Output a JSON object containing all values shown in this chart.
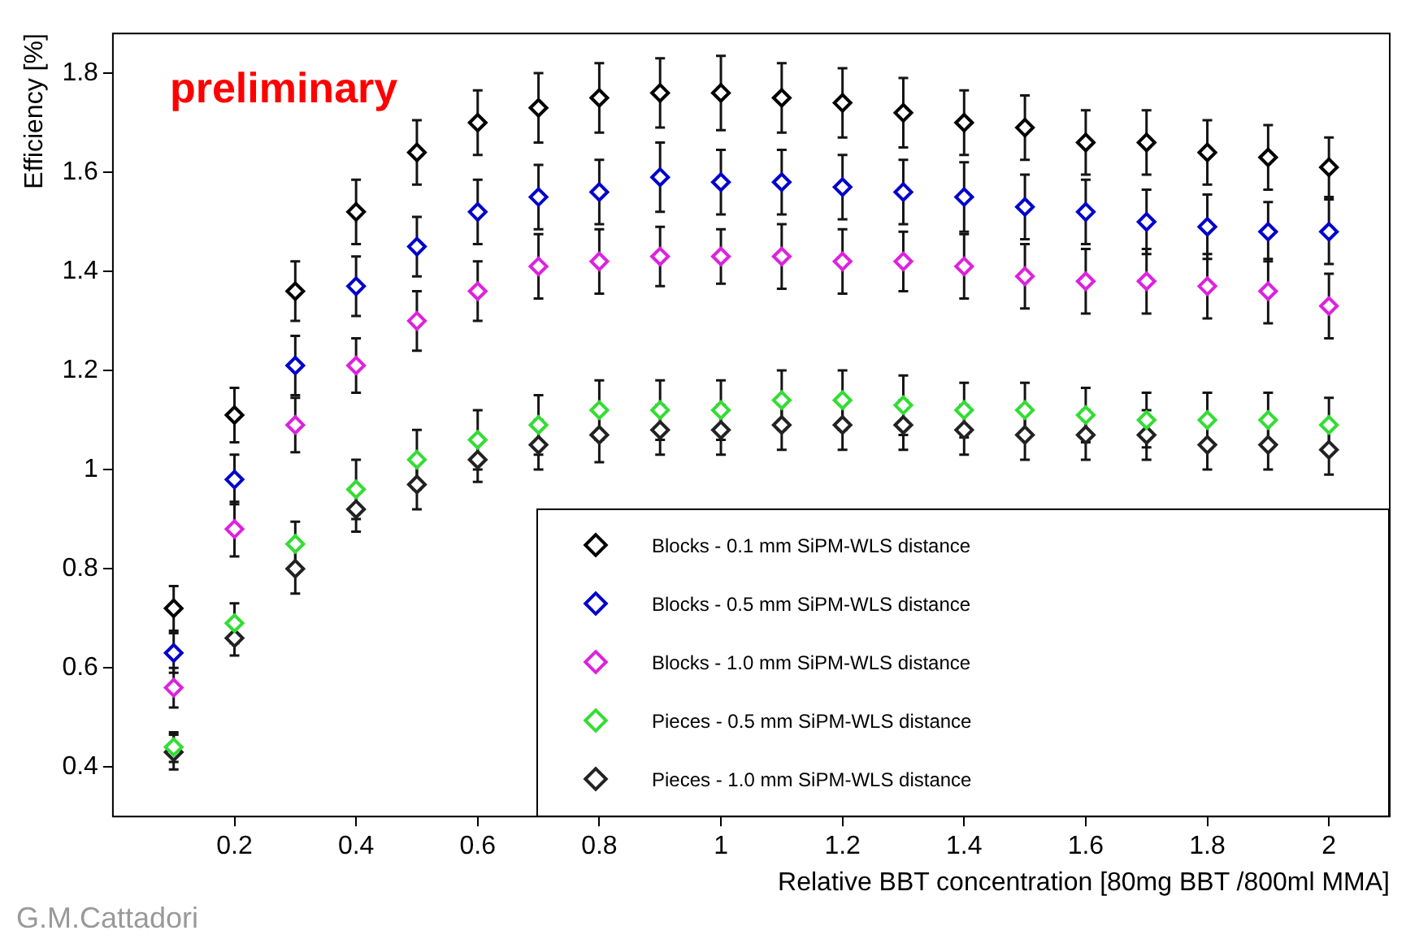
{
  "chart_data": {
    "type": "scatter",
    "xlabel": "Relative BBT concentration [80mg BBT /800ml MMA]",
    "ylabel": "Efficiency [%]",
    "annotations": [
      "preliminary",
      "G.M.Cattadori"
    ],
    "x": [
      0.1,
      0.2,
      0.3,
      0.4,
      0.5,
      0.6,
      0.7,
      0.8,
      0.9,
      1.0,
      1.1,
      1.2,
      1.3,
      1.4,
      1.5,
      1.6,
      1.7,
      1.8,
      1.9,
      2.0
    ],
    "xlim": [
      0,
      2.1
    ],
    "xticks": [
      0.2,
      0.4,
      0.6,
      0.8,
      1,
      1.2,
      1.4,
      1.6,
      1.8,
      2
    ],
    "ylim": [
      0.3,
      1.88
    ],
    "yticks": [
      0.4,
      0.6,
      0.8,
      1,
      1.2,
      1.4,
      1.6,
      1.8
    ],
    "grid": false,
    "legend": "bottom right",
    "marker": "diamond",
    "series": [
      {
        "name": "Blocks - 0.1 mm SiPM-WLS distance",
        "color": "#000000",
        "values": [
          0.72,
          1.11,
          1.36,
          1.52,
          1.64,
          1.7,
          1.73,
          1.75,
          1.76,
          1.76,
          1.75,
          1.74,
          1.72,
          1.7,
          1.69,
          1.66,
          1.66,
          1.64,
          1.63,
          1.61
        ],
        "errors": [
          0.045,
          0.055,
          0.06,
          0.065,
          0.065,
          0.065,
          0.07,
          0.07,
          0.07,
          0.075,
          0.07,
          0.07,
          0.07,
          0.065,
          0.065,
          0.065,
          0.065,
          0.065,
          0.065,
          0.06
        ]
      },
      {
        "name": "Blocks - 0.5 mm SiPM-WLS distance",
        "color": "#0000cc",
        "values": [
          0.63,
          0.98,
          1.21,
          1.37,
          1.45,
          1.52,
          1.55,
          1.56,
          1.59,
          1.58,
          1.58,
          1.57,
          1.56,
          1.55,
          1.53,
          1.52,
          1.5,
          1.49,
          1.48,
          1.48
        ],
        "errors": [
          0.04,
          0.05,
          0.06,
          0.06,
          0.06,
          0.065,
          0.065,
          0.065,
          0.07,
          0.065,
          0.065,
          0.065,
          0.065,
          0.07,
          0.065,
          0.065,
          0.065,
          0.065,
          0.06,
          0.065
        ]
      },
      {
        "name": "Blocks - 1.0 mm SiPM-WLS distance",
        "color": "#dd22dd",
        "values": [
          0.56,
          0.88,
          1.09,
          1.21,
          1.3,
          1.36,
          1.41,
          1.42,
          1.43,
          1.43,
          1.43,
          1.42,
          1.42,
          1.41,
          1.39,
          1.38,
          1.38,
          1.37,
          1.36,
          1.33
        ],
        "errors": [
          0.04,
          0.055,
          0.055,
          0.055,
          0.06,
          0.06,
          0.065,
          0.065,
          0.06,
          0.055,
          0.065,
          0.065,
          0.06,
          0.065,
          0.065,
          0.065,
          0.065,
          0.065,
          0.065,
          0.065
        ]
      },
      {
        "name": "Pieces - 0.5 mm SiPM-WLS distance",
        "color": "#33dd33",
        "values": [
          0.44,
          0.69,
          0.85,
          0.96,
          1.02,
          1.06,
          1.09,
          1.12,
          1.12,
          1.12,
          1.14,
          1.14,
          1.13,
          1.12,
          1.12,
          1.11,
          1.1,
          1.1,
          1.1,
          1.09
        ],
        "errors": [
          0.03,
          0.04,
          0.045,
          0.06,
          0.06,
          0.06,
          0.06,
          0.06,
          0.06,
          0.06,
          0.06,
          0.06,
          0.06,
          0.055,
          0.055,
          0.055,
          0.055,
          0.055,
          0.055,
          0.055
        ]
      },
      {
        "name": "Pieces - 1.0 mm SiPM-WLS distance",
        "color": "#222222",
        "values": [
          0.43,
          0.66,
          0.8,
          0.92,
          0.97,
          1.02,
          1.05,
          1.07,
          1.08,
          1.08,
          1.09,
          1.09,
          1.09,
          1.08,
          1.07,
          1.07,
          1.07,
          1.05,
          1.05,
          1.04
        ],
        "errors": [
          0.035,
          0.035,
          0.05,
          0.045,
          0.05,
          0.045,
          0.05,
          0.055,
          0.05,
          0.05,
          0.05,
          0.05,
          0.05,
          0.05,
          0.05,
          0.05,
          0.05,
          0.05,
          0.05,
          0.05
        ]
      }
    ]
  }
}
